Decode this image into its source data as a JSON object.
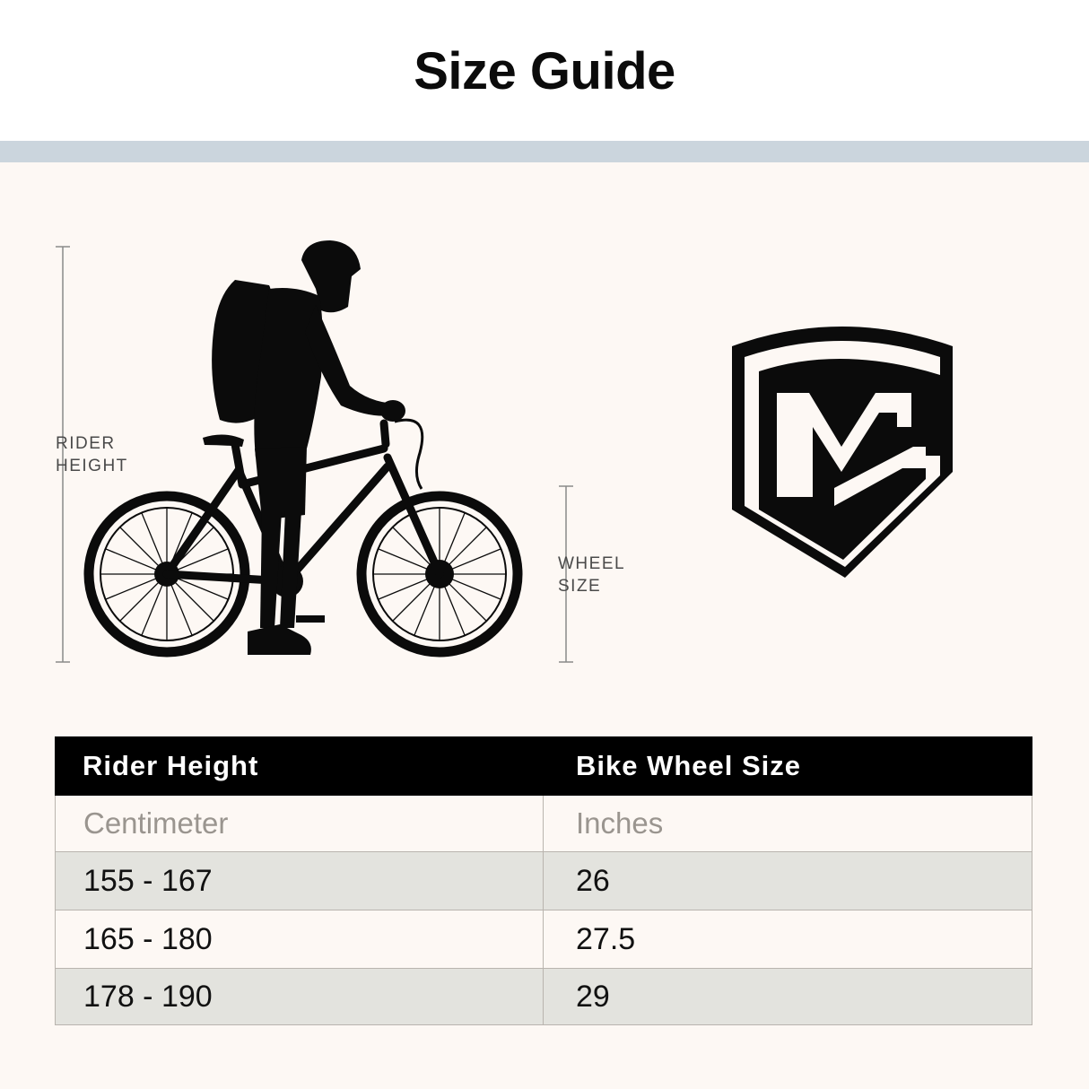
{
  "title": "Size Guide",
  "illustration": {
    "rider_height_label_line1": "RIDER",
    "rider_height_label_line2": "HEIGHT",
    "wheel_size_label_line1": "WHEEL",
    "wheel_size_label_line2": "SIZE"
  },
  "table": {
    "headers": [
      "Rider Height",
      "Bike Wheel Size"
    ],
    "units": [
      "Centimeter",
      "Inches"
    ],
    "rows": [
      [
        "155 - 167",
        "26"
      ],
      [
        "165 - 180",
        "27.5"
      ],
      [
        "178 - 190",
        "29"
      ]
    ]
  },
  "colors": {
    "band": "#cbd5dd",
    "background": "#fdf8f4",
    "header_bg": "#000000",
    "shaded_row": "#e3e3de"
  }
}
